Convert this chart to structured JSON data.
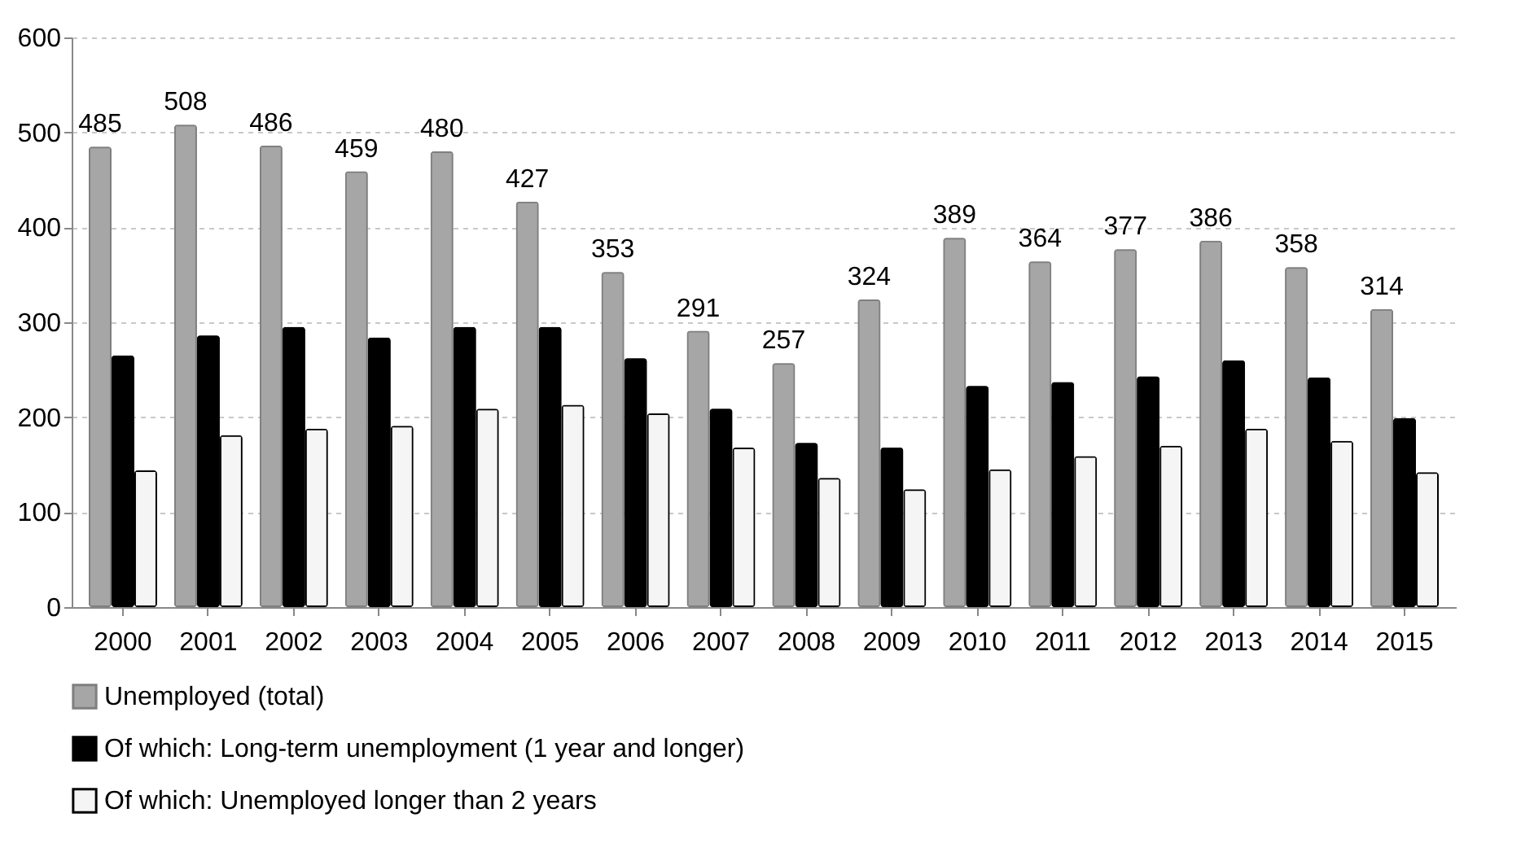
{
  "chart_data": {
    "type": "bar",
    "categories": [
      "2000",
      "2001",
      "2002",
      "2003",
      "2004",
      "2005",
      "2006",
      "2007",
      "2008",
      "2009",
      "2010",
      "2011",
      "2012",
      "2013",
      "2014",
      "2015"
    ],
    "series": [
      {
        "name": "Unemployed (total)",
        "color": "#a6a6a6",
        "values": [
          485,
          508,
          486,
          459,
          480,
          427,
          353,
          291,
          257,
          324,
          389,
          364,
          377,
          386,
          358,
          314
        ],
        "value_labels": [
          "485",
          "508",
          "486",
          "459",
          "480",
          "427",
          "353",
          "291",
          "257",
          "324",
          "389",
          "364",
          "377",
          "386",
          "358",
          "314"
        ]
      },
      {
        "name": "Of which: Long-term unemployment (1 year and longer)",
        "color": "#000000",
        "values": [
          265,
          286,
          295,
          284,
          295,
          295,
          262,
          209,
          173,
          168,
          233,
          237,
          243,
          260,
          242,
          199
        ]
      },
      {
        "name": "Of which: Unemployed longer than 2 years",
        "color": "#f5f5f5",
        "values": [
          144,
          181,
          188,
          191,
          209,
          213,
          204,
          168,
          136,
          124,
          145,
          159,
          170,
          188,
          175,
          142
        ]
      }
    ],
    "ylim": [
      0,
      600
    ],
    "yticks": [
      0,
      100,
      200,
      300,
      400,
      500,
      600
    ],
    "grid": "y",
    "legend": "bottom"
  }
}
